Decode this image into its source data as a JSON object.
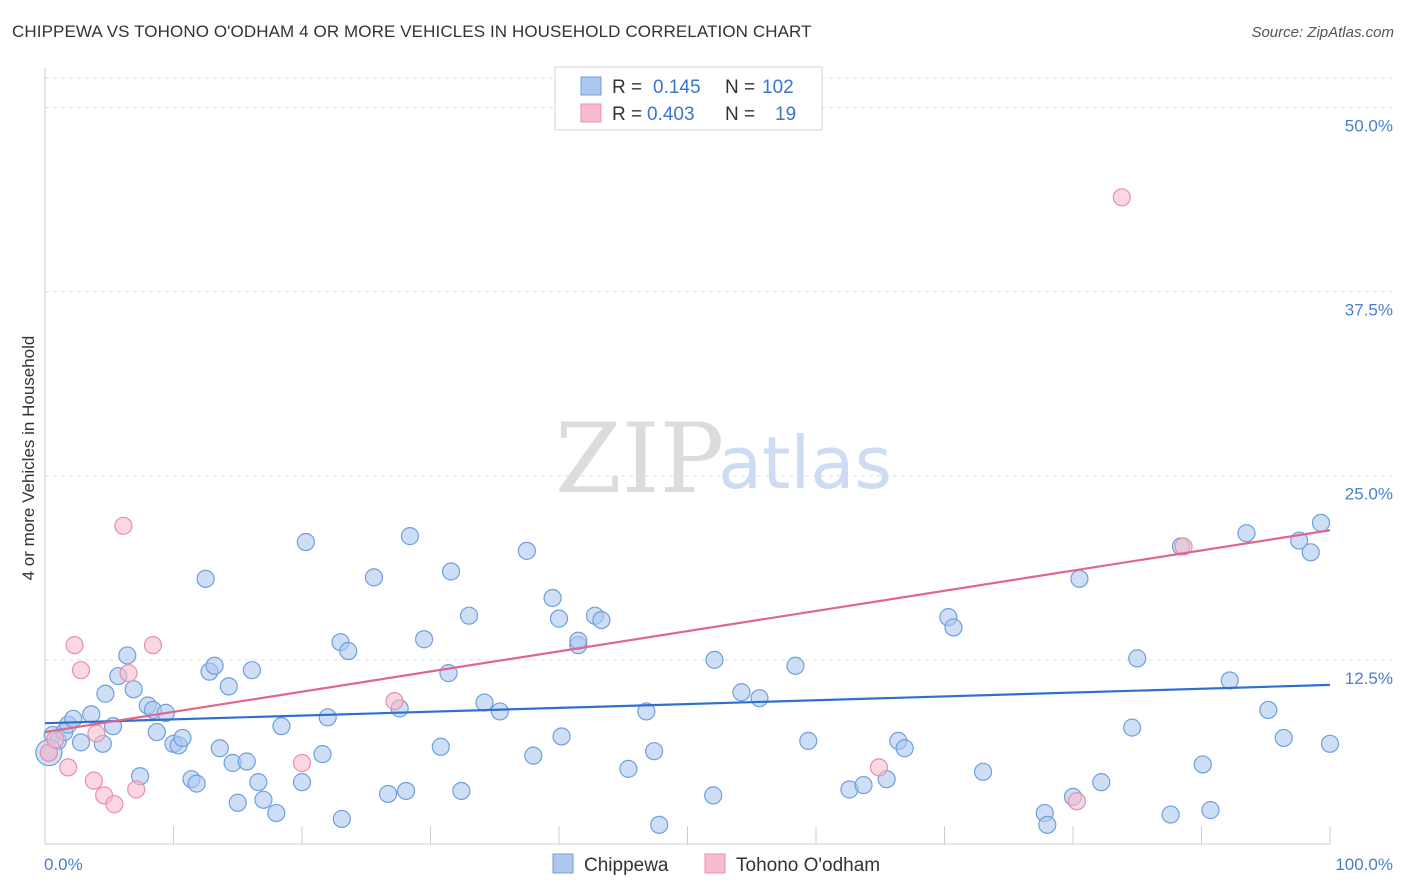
{
  "header": {
    "title": "CHIPPEWA VS TOHONO O'ODHAM 4 OR MORE VEHICLES IN HOUSEHOLD CORRELATION CHART",
    "source": "Source: ZipAtlas.com"
  },
  "watermark": {
    "zip": "ZIP",
    "atlas": "atlas"
  },
  "legend": {
    "r_label": "R =",
    "n_label": "N =",
    "rows": [
      {
        "r": "0.145",
        "n": "102"
      },
      {
        "r": "0.403",
        "n": "19"
      }
    ]
  },
  "colors": {
    "chippewa_fill": "#aec8ef",
    "chippewa_stroke": "#6f9fdf",
    "chippewa_line": "#2f6fd0",
    "tohono_fill": "#f6bccd",
    "tohono_stroke": "#e98fab",
    "tohono_line": "#e06690",
    "grid": "#dddddd"
  },
  "chart_data": {
    "type": "scatter",
    "title": "CHIPPEWA VS TOHONO O'ODHAM 4 OR MORE VEHICLES IN HOUSEHOLD CORRELATION CHART",
    "xlabel": "",
    "ylabel": "4 or more Vehicles in Household",
    "xlim": [
      0,
      100
    ],
    "ylim": [
      0,
      52
    ],
    "x_tick_labels": [
      "0.0%",
      "100.0%"
    ],
    "y_ticks": [
      12.5,
      25.0,
      37.5,
      50.0
    ],
    "y_tick_labels": [
      "12.5%",
      "25.0%",
      "37.5%",
      "50.0%"
    ],
    "grid": true,
    "legend_position": "bottom-center",
    "series": [
      {
        "name": "Chippewa",
        "r": 0.145,
        "n": 102,
        "trend": {
          "x": [
            0,
            100
          ],
          "y": [
            8.2,
            10.8
          ]
        },
        "points": [
          [
            0.3,
            6.2
          ],
          [
            0.6,
            7.4
          ],
          [
            1.0,
            7.0
          ],
          [
            1.5,
            7.6
          ],
          [
            1.8,
            8.1
          ],
          [
            2.2,
            8.5
          ],
          [
            2.8,
            6.9
          ],
          [
            3.6,
            8.8
          ],
          [
            4.5,
            6.8
          ],
          [
            4.7,
            10.2
          ],
          [
            5.3,
            8.0
          ],
          [
            5.7,
            11.4
          ],
          [
            6.4,
            12.8
          ],
          [
            6.9,
            10.5
          ],
          [
            7.4,
            4.6
          ],
          [
            8.0,
            9.4
          ],
          [
            8.4,
            9.1
          ],
          [
            8.7,
            7.6
          ],
          [
            9.4,
            8.9
          ],
          [
            10.0,
            6.8
          ],
          [
            10.4,
            6.7
          ],
          [
            10.7,
            7.2
          ],
          [
            11.4,
            4.4
          ],
          [
            11.8,
            4.1
          ],
          [
            12.5,
            18.0
          ],
          [
            12.8,
            11.7
          ],
          [
            13.2,
            12.1
          ],
          [
            13.6,
            6.5
          ],
          [
            14.3,
            10.7
          ],
          [
            14.6,
            5.5
          ],
          [
            15.0,
            2.8
          ],
          [
            15.7,
            5.6
          ],
          [
            16.1,
            11.8
          ],
          [
            16.6,
            4.2
          ],
          [
            17.0,
            3.0
          ],
          [
            18.0,
            2.1
          ],
          [
            18.4,
            8.0
          ],
          [
            20.3,
            20.5
          ],
          [
            20.0,
            4.2
          ],
          [
            21.6,
            6.1
          ],
          [
            22.0,
            8.6
          ],
          [
            23.1,
            1.7
          ],
          [
            23.0,
            13.7
          ],
          [
            23.6,
            13.1
          ],
          [
            25.6,
            18.1
          ],
          [
            26.7,
            3.4
          ],
          [
            27.6,
            9.2
          ],
          [
            28.1,
            3.6
          ],
          [
            28.4,
            20.9
          ],
          [
            29.5,
            13.9
          ],
          [
            30.8,
            6.6
          ],
          [
            31.4,
            11.6
          ],
          [
            31.6,
            18.5
          ],
          [
            32.4,
            3.6
          ],
          [
            33.0,
            15.5
          ],
          [
            34.2,
            9.6
          ],
          [
            35.4,
            9.0
          ],
          [
            37.5,
            19.9
          ],
          [
            38.0,
            6.0
          ],
          [
            39.5,
            16.7
          ],
          [
            40.2,
            7.3
          ],
          [
            40.0,
            15.3
          ],
          [
            41.5,
            13.5
          ],
          [
            41.5,
            13.8
          ],
          [
            42.8,
            15.5
          ],
          [
            43.3,
            15.2
          ],
          [
            45.4,
            5.1
          ],
          [
            46.8,
            9.0
          ],
          [
            47.4,
            6.3
          ],
          [
            47.8,
            1.3
          ],
          [
            52.0,
            3.3
          ],
          [
            52.1,
            12.5
          ],
          [
            54.2,
            10.3
          ],
          [
            55.6,
            9.9
          ],
          [
            58.4,
            12.1
          ],
          [
            59.4,
            7.0
          ],
          [
            62.6,
            3.7
          ],
          [
            63.7,
            4.0
          ],
          [
            65.5,
            4.4
          ],
          [
            66.4,
            7.0
          ],
          [
            66.9,
            6.5
          ],
          [
            70.3,
            15.4
          ],
          [
            70.7,
            14.7
          ],
          [
            73.0,
            4.9
          ],
          [
            77.8,
            2.1
          ],
          [
            78.0,
            1.3
          ],
          [
            80.0,
            3.2
          ],
          [
            80.5,
            18.0
          ],
          [
            82.2,
            4.2
          ],
          [
            84.6,
            7.9
          ],
          [
            85.0,
            12.6
          ],
          [
            87.6,
            2.0
          ],
          [
            88.4,
            20.2
          ],
          [
            90.1,
            5.4
          ],
          [
            90.7,
            2.3
          ],
          [
            92.2,
            11.1
          ],
          [
            93.5,
            21.1
          ],
          [
            95.2,
            9.1
          ],
          [
            96.4,
            7.2
          ],
          [
            97.6,
            20.6
          ],
          [
            98.5,
            19.8
          ],
          [
            99.3,
            21.8
          ],
          [
            100.0,
            6.8
          ]
        ]
      },
      {
        "name": "Tohono O'odham",
        "r": 0.403,
        "n": 19,
        "trend": {
          "x": [
            0,
            100
          ],
          "y": [
            7.6,
            21.3
          ]
        },
        "points": [
          [
            0.3,
            6.2
          ],
          [
            0.8,
            7.1
          ],
          [
            1.8,
            5.2
          ],
          [
            2.3,
            13.5
          ],
          [
            2.8,
            11.8
          ],
          [
            3.8,
            4.3
          ],
          [
            4.0,
            7.5
          ],
          [
            4.6,
            3.3
          ],
          [
            5.4,
            2.7
          ],
          [
            6.1,
            21.6
          ],
          [
            6.5,
            11.6
          ],
          [
            7.1,
            3.7
          ],
          [
            8.4,
            13.5
          ],
          [
            20.0,
            5.5
          ],
          [
            27.2,
            9.7
          ],
          [
            64.9,
            5.2
          ],
          [
            80.3,
            2.9
          ],
          [
            83.8,
            43.9
          ],
          [
            88.6,
            20.2
          ]
        ]
      }
    ]
  },
  "bottom_legend": [
    "Chippewa",
    "Tohono O'odham"
  ]
}
